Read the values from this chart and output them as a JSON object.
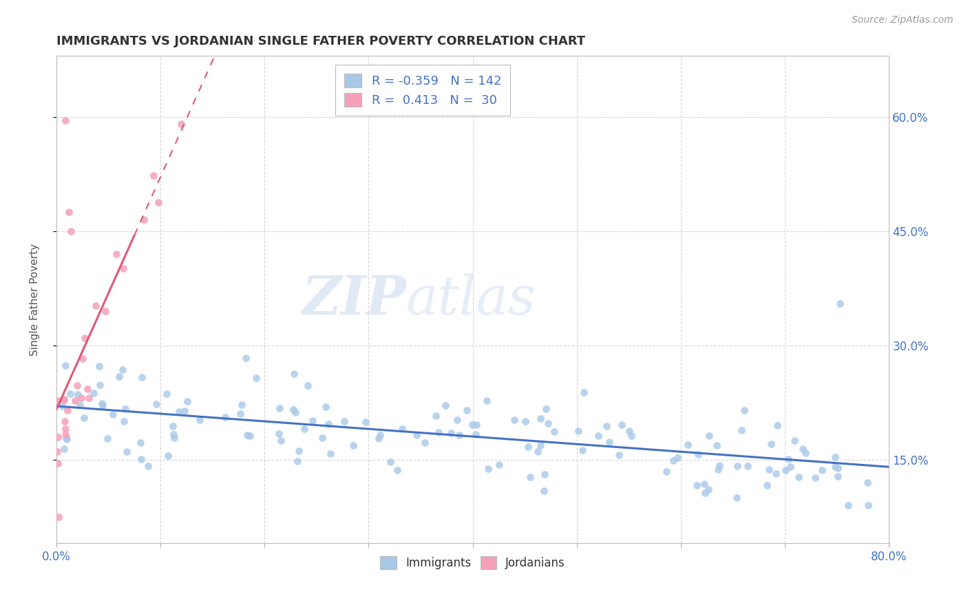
{
  "title": "IMMIGRANTS VS JORDANIAN SINGLE FATHER POVERTY CORRELATION CHART",
  "source": "Source: ZipAtlas.com",
  "ylabel": "Single Father Poverty",
  "xlim": [
    0.0,
    0.8
  ],
  "ylim": [
    0.04,
    0.68
  ],
  "y_ticks": [
    0.15,
    0.3,
    0.45,
    0.6
  ],
  "y_tick_labels": [
    "15.0%",
    "30.0%",
    "45.0%",
    "60.0%"
  ],
  "x_ticks": [
    0.0,
    0.1,
    0.2,
    0.3,
    0.4,
    0.5,
    0.6,
    0.7,
    0.8
  ],
  "x_tick_labels": [
    "0.0%",
    "",
    "",
    "",
    "",
    "",
    "",
    "",
    "80.0%"
  ],
  "watermark_zip": "ZIP",
  "watermark_atlas": "atlas",
  "legend_r_immigrants": "-0.359",
  "legend_n_immigrants": "142",
  "legend_r_jordanians": " 0.413",
  "legend_n_jordanians": "30",
  "immigrant_color": "#a8c8e8",
  "jordanian_color": "#f4a0b8",
  "immigrant_line_color": "#4472c4",
  "jordanian_line_color": "#e05878",
  "background_color": "#ffffff",
  "grid_color": "#cccccc",
  "title_color": "#333333",
  "tick_color": "#4472c4",
  "ylabel_color": "#555555"
}
